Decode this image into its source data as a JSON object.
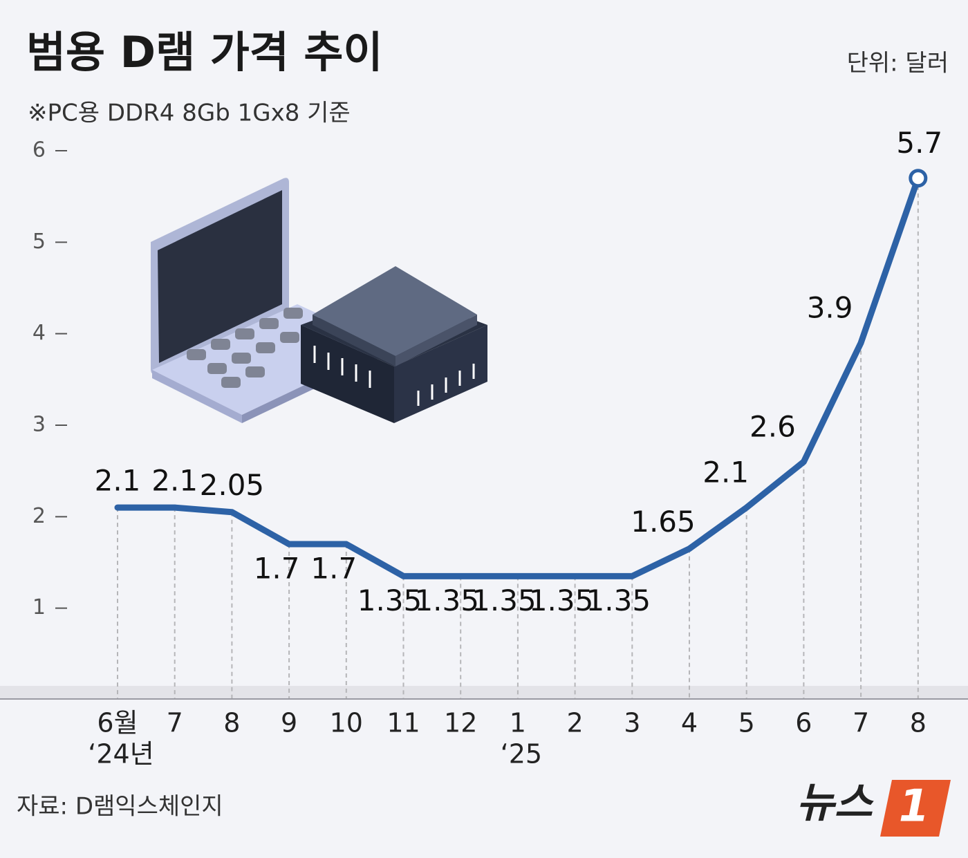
{
  "chart_data": {
    "type": "line",
    "title": "범용 D램 가격 추이",
    "subtitle": "※PC용 DDR4 8Gb 1Gx8 기준",
    "unit": "단위: 달러",
    "source": "자료: D램익스체인지",
    "logo_text": "뉴스",
    "logo_badge": "1",
    "categories": [
      "6월",
      "7",
      "8",
      "9",
      "10",
      "11",
      "12",
      "1",
      "2",
      "3",
      "4",
      "5",
      "6",
      "7",
      "8"
    ],
    "x_sublabels": [
      "‘24년",
      null,
      null,
      null,
      null,
      null,
      null,
      "‘25",
      null,
      null,
      null,
      null,
      null,
      null,
      null
    ],
    "series": [
      {
        "name": "가격",
        "color": "#2d62a6",
        "values": [
          2.1,
          2.1,
          2.05,
          1.7,
          1.7,
          1.35,
          1.35,
          1.35,
          1.35,
          1.35,
          1.65,
          2.1,
          2.6,
          3.9,
          5.7
        ]
      }
    ],
    "ylim": [
      0,
      6
    ],
    "yticks": [
      1,
      2,
      3,
      4,
      5,
      6
    ]
  }
}
